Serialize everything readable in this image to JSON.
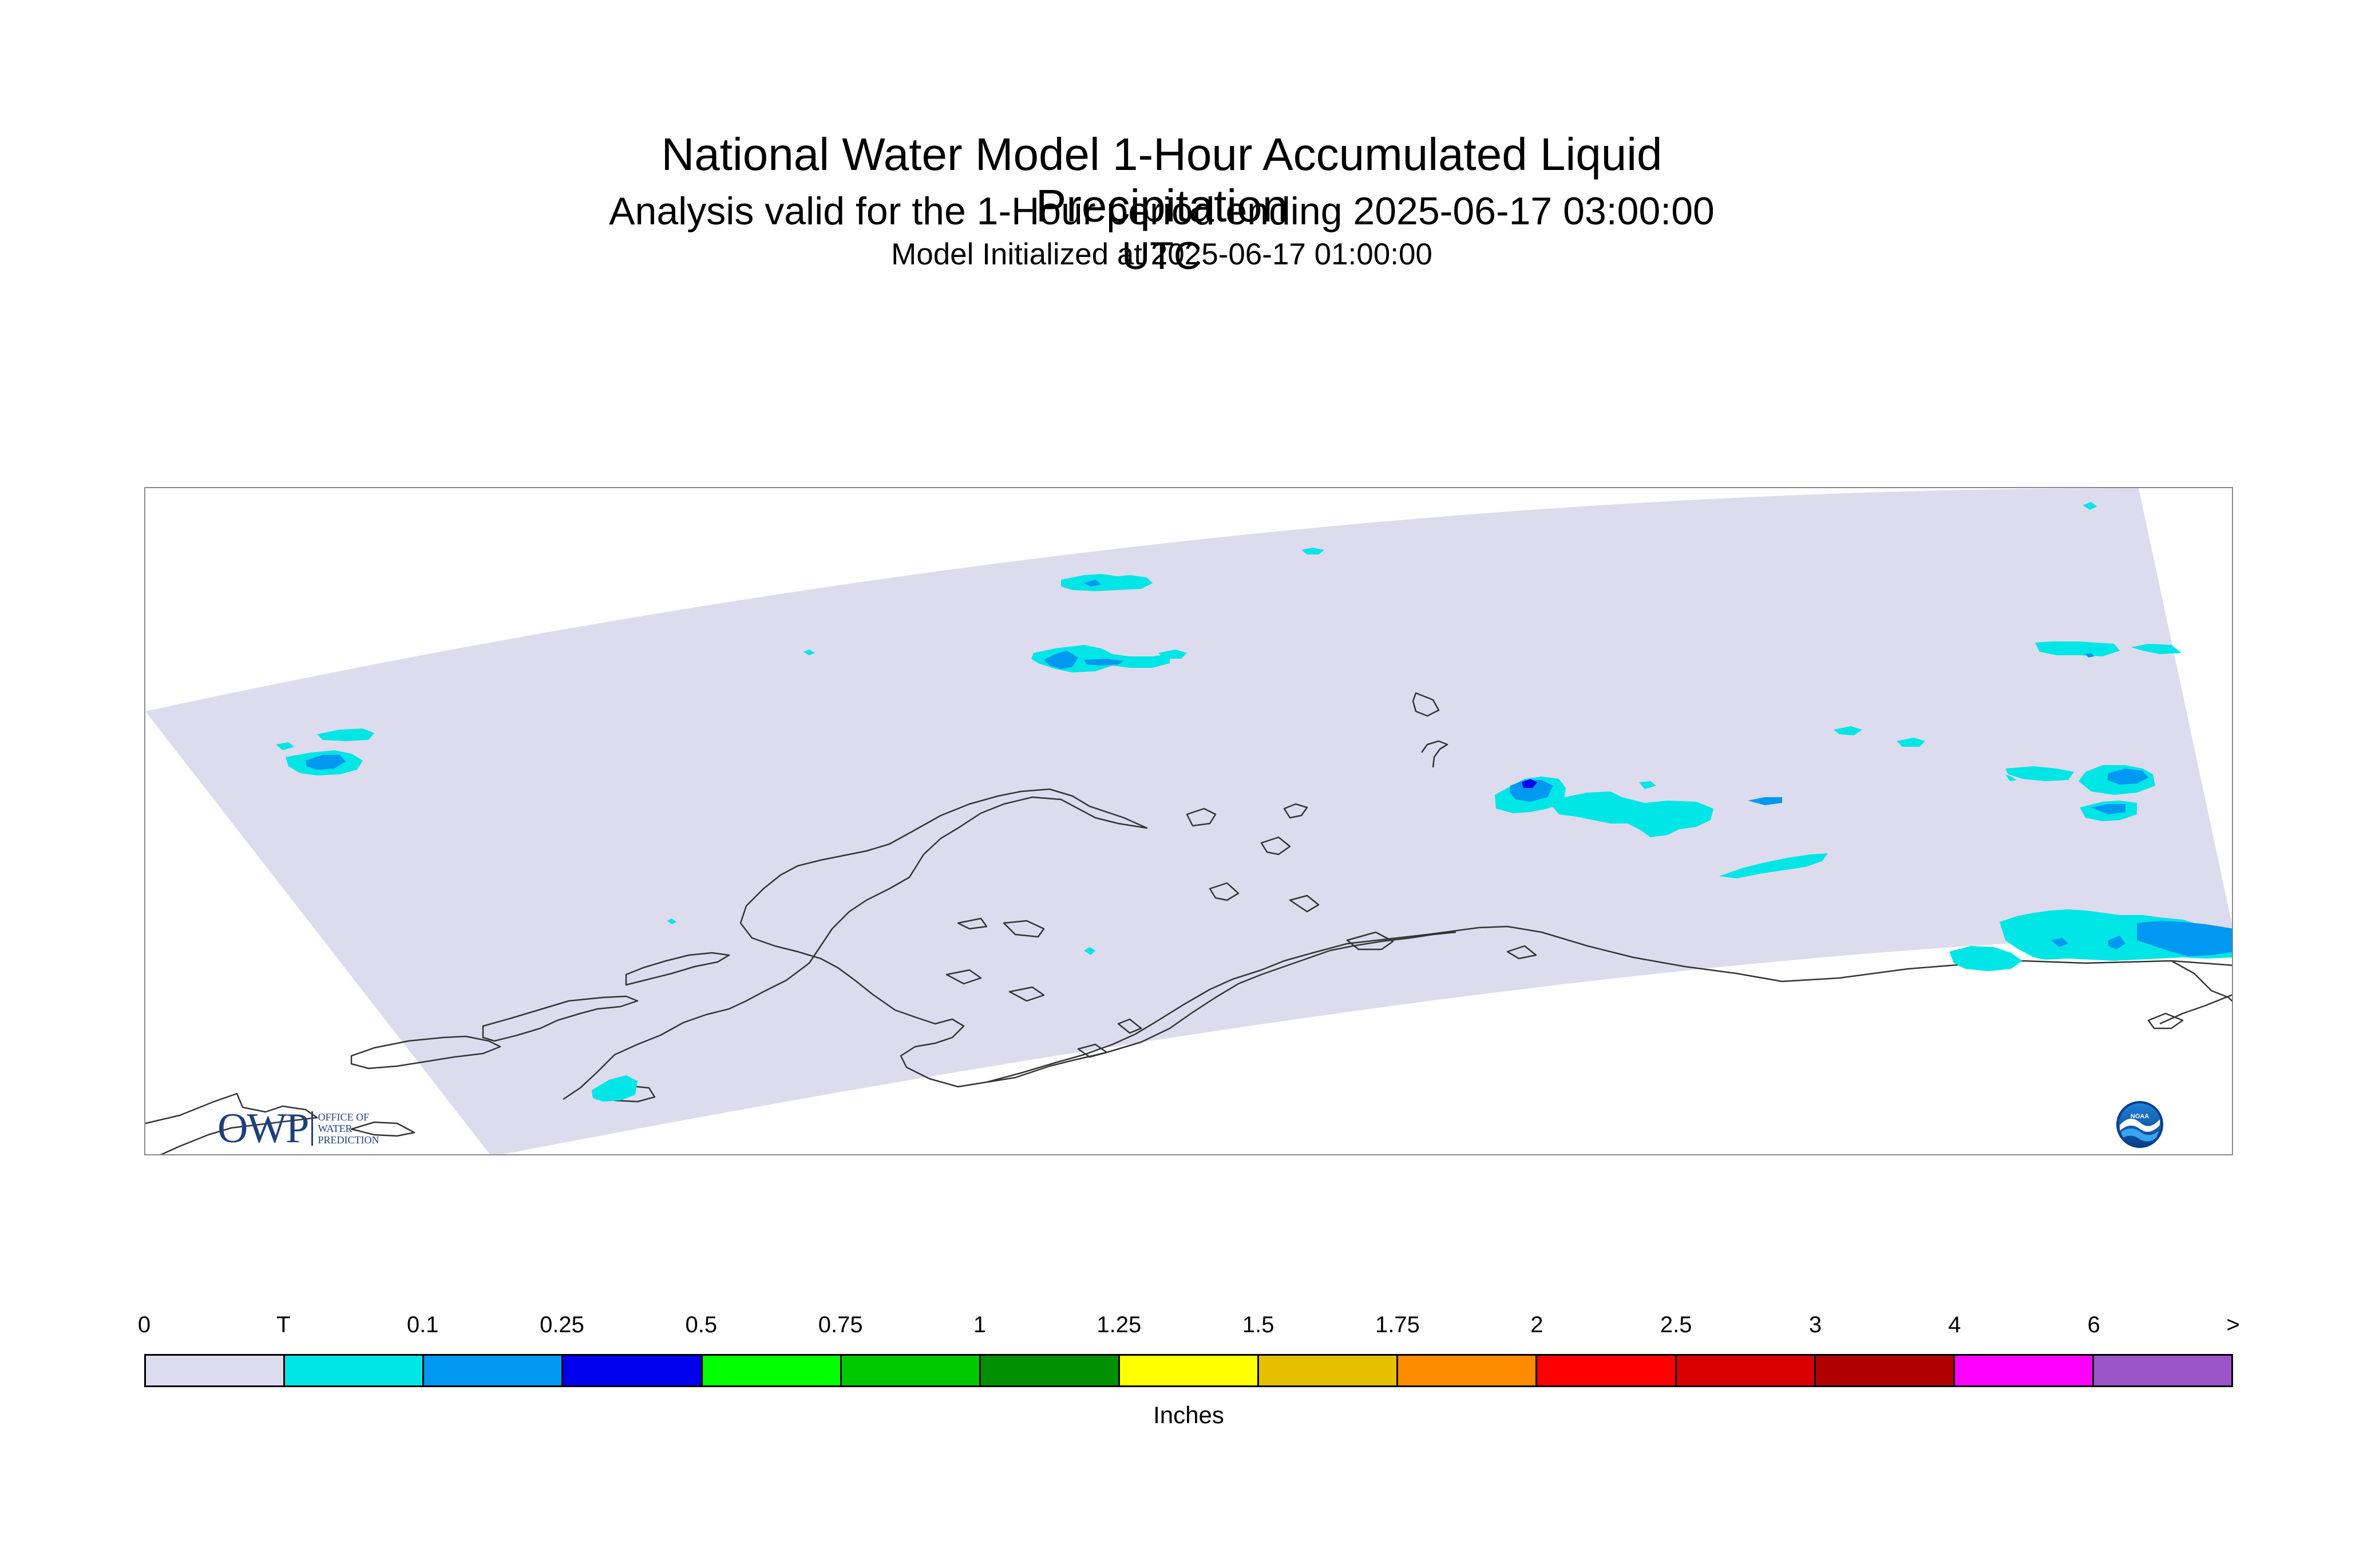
{
  "header": {
    "title": "National Water Model 1-Hour Accumulated Liquid Precipitation",
    "subtitle": "Analysis valid for the 1-Hour period ending 2025-06-17 03:00:00 UTC",
    "initialized": "Model Initialized at 2025-06-17 01:00:00"
  },
  "map": {
    "domain_fill_color": "#dcdcee",
    "coastline_color": "#333333",
    "precip_colors": {
      "trace": "#00e5e5",
      "light": "#0098f0",
      "moderate": "#0000ee"
    }
  },
  "logos": {
    "owp": {
      "big": "OWP",
      "line1": "OFFICE OF",
      "line2": "WATER",
      "line3": "PREDICTION"
    },
    "noaa": {
      "text": "NOAA"
    }
  },
  "legend": {
    "units": "Inches",
    "ticks": [
      "0",
      "T",
      "0.1",
      "0.25",
      "0.5",
      "0.75",
      "1",
      "1.25",
      "1.5",
      "1.75",
      "2",
      "2.5",
      "3",
      "4",
      "6",
      ">"
    ],
    "colors": [
      "#dcdcee",
      "#00e5e5",
      "#0098f0",
      "#0000ee",
      "#00ff00",
      "#00c800",
      "#009000",
      "#ffff00",
      "#e6c000",
      "#ff8c00",
      "#ff0000",
      "#d80000",
      "#b00000",
      "#ff00ff",
      "#9b55c8"
    ]
  }
}
